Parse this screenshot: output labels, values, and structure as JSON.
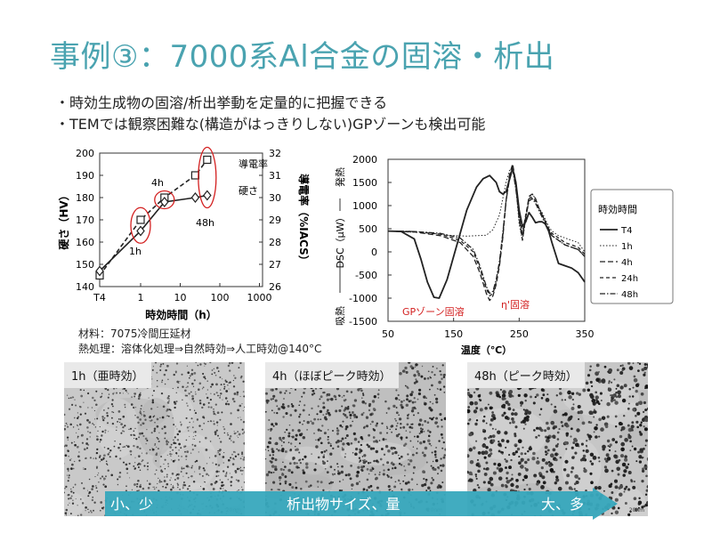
{
  "slide": {
    "title": "事例③：7000系Al合金の固溶・析出",
    "bullets": [
      "・時効生成物の固溶/析出挙動を定量的に把握できる",
      "・TEMでは観察困難な(構造がはっきりしない)GPゾーンも検出可能"
    ],
    "notes": [
      "材料：7075冷間圧延材",
      "熱処理：溶体化処理⇒自然時効⇒人工時効@140°C"
    ]
  },
  "chart_data": [
    {
      "type": "line",
      "xlabel": "時効時間（h）",
      "ylabel": "硬さ（HV）",
      "y2label": "導電率（%IACS）",
      "x_tick_labels": [
        "T4",
        "1",
        "10",
        "100",
        "1000"
      ],
      "ylim": [
        140,
        200
      ],
      "y_ticks": [
        140,
        150,
        160,
        170,
        180,
        190,
        200
      ],
      "y2lim": [
        26,
        32
      ],
      "y2_ticks": [
        26,
        27,
        28,
        29,
        30,
        31,
        32
      ],
      "x_points": [
        "T4",
        1,
        4,
        24,
        48
      ],
      "series": [
        {
          "name": "導電率",
          "axis": "right",
          "marker": "square",
          "dash": "dashed",
          "values": [
            26.5,
            29.0,
            30.0,
            31.0,
            31.7
          ]
        },
        {
          "name": "硬さ",
          "axis": "left",
          "marker": "diamond",
          "dash": "solid",
          "values": [
            147,
            165,
            178,
            180,
            181
          ]
        }
      ],
      "annotations": [
        "1h",
        "4h",
        "48h"
      ]
    },
    {
      "type": "line",
      "xlabel": "温度（℃）",
      "ylabel": "DSC（μW）",
      "ylabel_top": "発熱",
      "ylabel_bottom": "吸熱",
      "xlim": [
        50,
        350
      ],
      "x_ticks": [
        50,
        150,
        250,
        350
      ],
      "ylim": [
        -1500,
        2000
      ],
      "y_ticks": [
        -1500,
        -1000,
        -500,
        0,
        500,
        1000,
        1500,
        2000
      ],
      "legend_title": "時効時間",
      "legend_position": "right",
      "annotations": [
        "GPゾーン固溶",
        "η'固溶"
      ],
      "series": [
        {
          "name": "T4",
          "dash": "solid",
          "x": [
            50,
            70,
            90,
            100,
            110,
            120,
            128,
            140,
            155,
            170,
            185,
            195,
            205,
            215,
            220,
            225,
            230,
            235,
            240,
            245,
            250,
            255,
            260,
            265,
            270,
            275,
            280,
            285,
            290,
            295,
            300,
            310,
            320,
            330,
            340,
            350
          ],
          "y": [
            450,
            440,
            280,
            -150,
            -650,
            -980,
            -1000,
            -600,
            150,
            900,
            1400,
            1580,
            1650,
            1500,
            1300,
            1250,
            1300,
            1550,
            1800,
            1500,
            900,
            550,
            650,
            850,
            750,
            630,
            650,
            650,
            600,
            450,
            200,
            -250,
            -300,
            -350,
            -450,
            -650
          ]
        },
        {
          "name": "1h",
          "dash": "dotted",
          "x": [
            50,
            80,
            110,
            140,
            170,
            200,
            210,
            220,
            230,
            235,
            240,
            245,
            250,
            255,
            260,
            265,
            270,
            275,
            280,
            285,
            290,
            295,
            300,
            310,
            320,
            330,
            340,
            350
          ],
          "y": [
            450,
            430,
            420,
            360,
            340,
            360,
            480,
            800,
            1500,
            1750,
            1850,
            1400,
            600,
            250,
            700,
            1150,
            1250,
            1150,
            950,
            850,
            700,
            550,
            450,
            350,
            300,
            250,
            200,
            0
          ]
        },
        {
          "name": "4h",
          "dash": "longdash",
          "x": [
            50,
            90,
            130,
            160,
            180,
            190,
            200,
            205,
            210,
            215,
            220,
            225,
            230,
            235,
            240,
            245,
            250,
            255,
            260,
            265,
            270,
            275,
            280,
            285,
            290,
            295,
            300,
            310,
            320,
            330,
            340,
            350
          ],
          "y": [
            450,
            430,
            350,
            200,
            -100,
            -450,
            -900,
            -1050,
            -950,
            -700,
            -300,
            300,
            1100,
            1650,
            1900,
            1500,
            700,
            250,
            750,
            1200,
            1250,
            1150,
            950,
            800,
            650,
            500,
            350,
            250,
            150,
            100,
            50,
            -100
          ]
        },
        {
          "name": "24h",
          "dash": "dashed",
          "x": [
            50,
            90,
            130,
            160,
            180,
            190,
            200,
            205,
            210,
            215,
            220,
            225,
            230,
            235,
            240,
            245,
            250,
            255,
            260,
            265,
            270,
            275,
            280,
            285,
            290,
            295,
            300,
            310,
            320,
            330,
            340,
            350
          ],
          "y": [
            450,
            440,
            380,
            250,
            0,
            -350,
            -800,
            -950,
            -900,
            -650,
            -250,
            350,
            1100,
            1600,
            1850,
            1400,
            800,
            400,
            800,
            1150,
            1180,
            1100,
            950,
            800,
            650,
            500,
            400,
            300,
            200,
            150,
            100,
            -50
          ]
        },
        {
          "name": "48h",
          "dash": "dashdot",
          "x": [
            50,
            90,
            130,
            160,
            180,
            190,
            200,
            205,
            210,
            215,
            220,
            225,
            230,
            235,
            240,
            245,
            250,
            255,
            260,
            265,
            270,
            275,
            280,
            285,
            290,
            295,
            300,
            310,
            320,
            330,
            340,
            350
          ],
          "y": [
            450,
            440,
            400,
            300,
            50,
            -300,
            -750,
            -900,
            -850,
            -600,
            -200,
            400,
            1100,
            1550,
            1800,
            1350,
            750,
            350,
            750,
            1100,
            1150,
            1050,
            900,
            750,
            600,
            450,
            350,
            250,
            150,
            100,
            50,
            -100
          ]
        }
      ]
    }
  ],
  "tem_images": [
    {
      "label": "1h（亜時効）",
      "scale": "20nm"
    },
    {
      "label": "4h（ほぼピーク時効）",
      "scale": "20nm"
    },
    {
      "label": "48h（ピーク時効）",
      "scale": "20nm"
    }
  ],
  "arrow": {
    "left_text": "小、少",
    "middle_text": "析出物サイズ、量",
    "right_text": "大、多",
    "color": "#37a8bd"
  }
}
